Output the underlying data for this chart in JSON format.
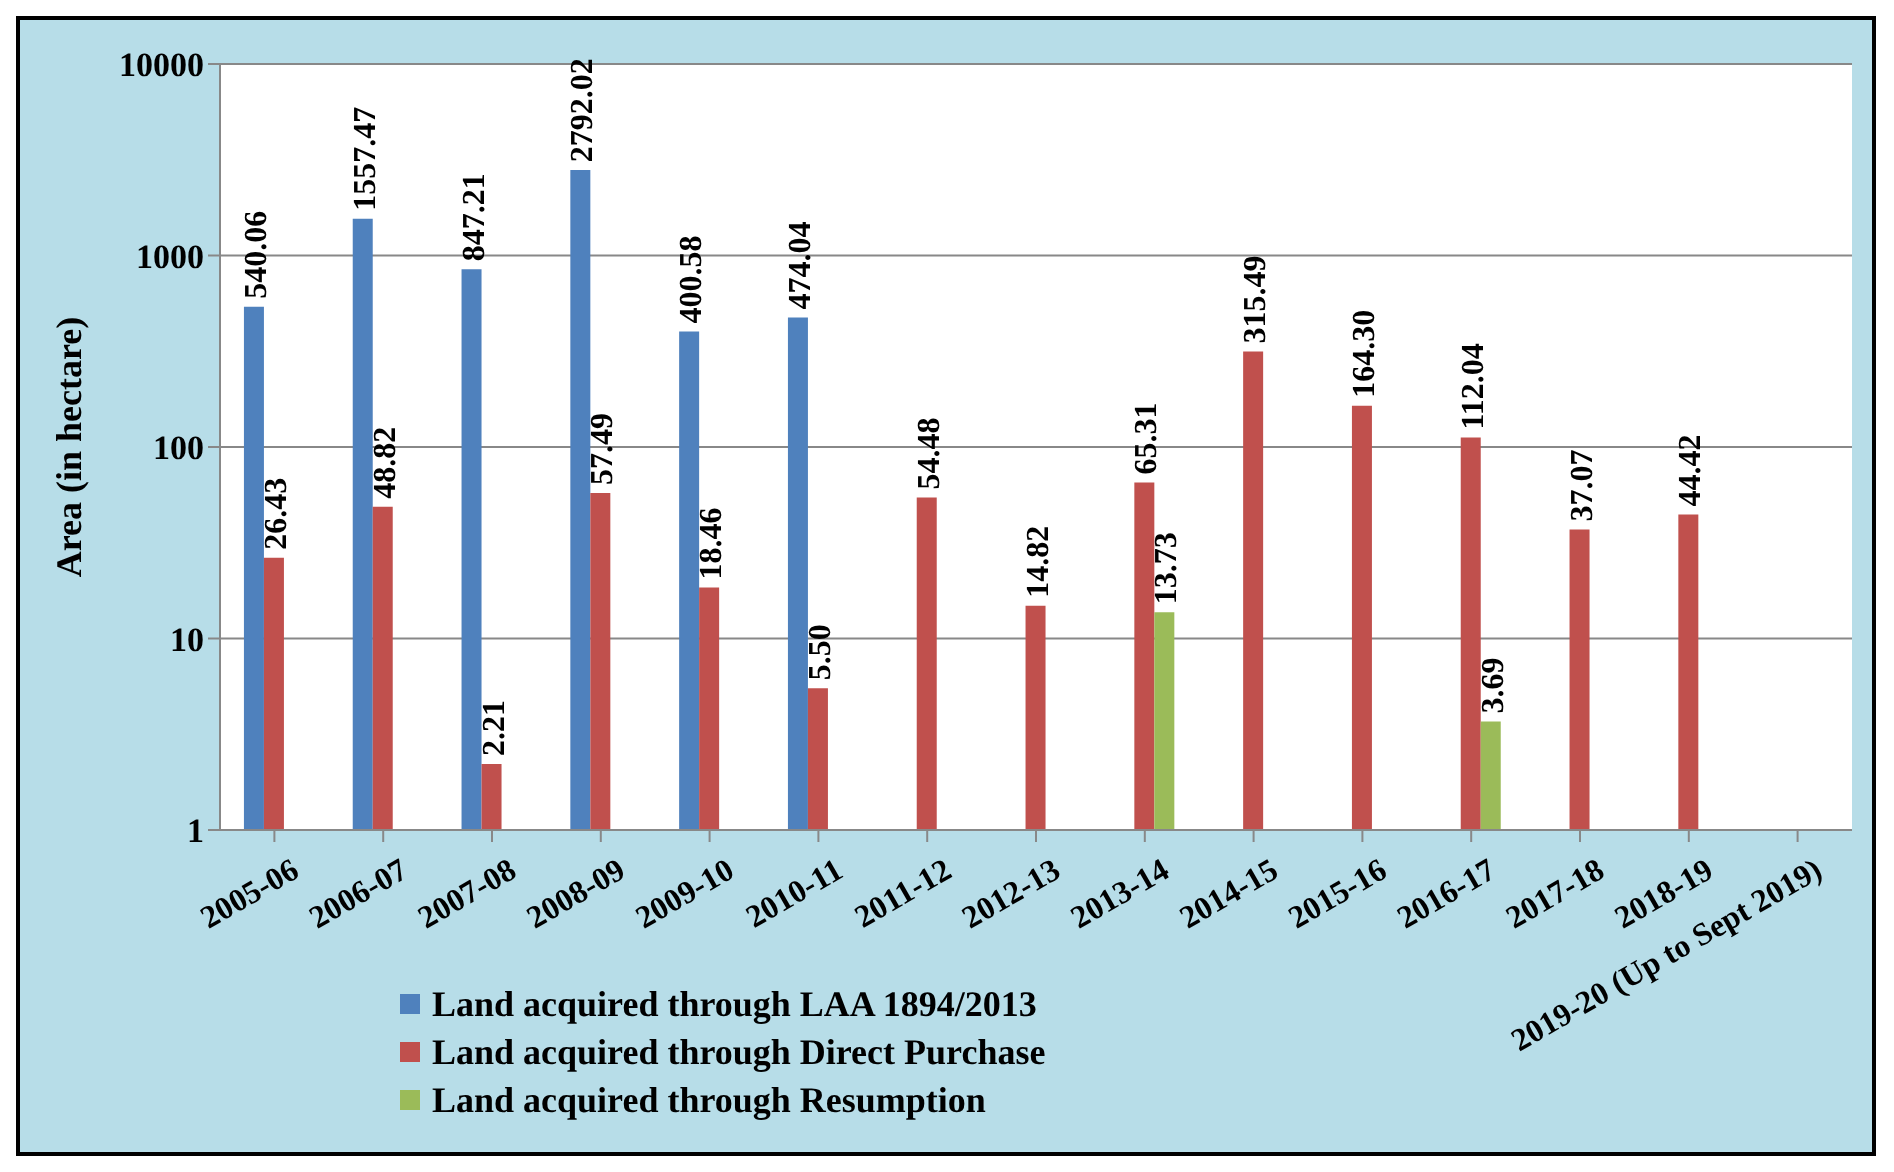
{
  "chart_data": {
    "type": "bar",
    "ylabel": "Area (in hectare)",
    "log": "y",
    "ylim": [
      1,
      10000
    ],
    "yticks": [
      1,
      10,
      100,
      1000,
      10000
    ],
    "grid": "y",
    "legend": "bottom",
    "categories": [
      "2005-06",
      "2006-07",
      "2007-08",
      "2008-09",
      "2009-10",
      "2010-11",
      "2011-12",
      "2012-13",
      "2013-14",
      "2014-15",
      "2015-16",
      "2016-17",
      "2017-18",
      "2018-19",
      "2019-20 (Up to Sept 2019)"
    ],
    "series": [
      {
        "name": "Land acquired through LAA 1894/2013",
        "color": "#4f81bd",
        "values": [
          540.06,
          1557.47,
          847.21,
          2792.02,
          400.58,
          474.04,
          null,
          null,
          null,
          null,
          null,
          null,
          null,
          null,
          null
        ],
        "value_labels": [
          "540.06",
          "1557.47",
          "847.21",
          "2792.02",
          "400.58",
          "474.04",
          null,
          null,
          null,
          null,
          null,
          null,
          null,
          null,
          null
        ]
      },
      {
        "name": "Land acquired through Direct Purchase",
        "color": "#c0504d",
        "values": [
          26.43,
          48.82,
          2.21,
          57.49,
          18.46,
          5.5,
          54.48,
          14.82,
          65.31,
          315.49,
          164.3,
          112.04,
          37.07,
          44.42,
          null
        ],
        "value_labels": [
          "26.43",
          "48.82",
          "2.21",
          "57.49",
          "18.46",
          "5.50",
          "54.48",
          "14.82",
          "65.31",
          "315.49",
          "164.30",
          "112.04",
          "37.07",
          "44.42",
          null
        ]
      },
      {
        "name": "Land acquired through Resumption",
        "color": "#9bbb59",
        "values": [
          null,
          null,
          null,
          null,
          null,
          null,
          null,
          null,
          13.73,
          null,
          null,
          3.69,
          null,
          null,
          null
        ],
        "value_labels": [
          null,
          null,
          null,
          null,
          null,
          null,
          null,
          null,
          "13.73",
          null,
          null,
          "3.69",
          null,
          null,
          null
        ]
      }
    ]
  }
}
